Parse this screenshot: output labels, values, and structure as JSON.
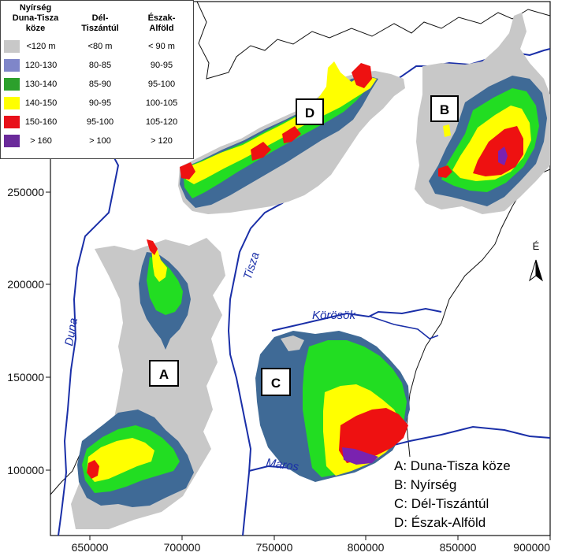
{
  "legend": {
    "columns": [
      {
        "line1": "Nyírség",
        "line2": "Duna-Tisza",
        "line3": "köze"
      },
      {
        "line1": "Dél-",
        "line2": "Tiszántúl",
        "line3": ""
      },
      {
        "line1": "Észak-",
        "line2": "Alföld",
        "line3": ""
      }
    ],
    "rows": [
      {
        "color": "#c8c8c8",
        "a": "<120 m",
        "b": "<80 m",
        "c": "< 90 m"
      },
      {
        "color": "#7f86c9",
        "a": "120-130",
        "b": "80-85",
        "c": "90-95"
      },
      {
        "color": "#2ca02c",
        "a": "130-140",
        "b": "85-90",
        "c": "95-100"
      },
      {
        "color": "#ffff00",
        "a": "140-150",
        "b": "90-95",
        "c": "100-105"
      },
      {
        "color": "#e8101a",
        "a": "150-160",
        "b": "95-100",
        "c": "105-120"
      },
      {
        "color": "#6a2a9a",
        "a": "> 160",
        "b": "> 100",
        "c": "> 120"
      }
    ]
  },
  "colors": {
    "gray": "#c8c8c8",
    "steel_blue": "#3f6a96",
    "green": "#22dd22",
    "yellow": "#ffff00",
    "red": "#ee1111",
    "purple": "#7a22b0",
    "river": "#1a2fa8",
    "border": "#111111"
  },
  "axes": {
    "x_ticks": [
      "650000",
      "700000",
      "750000",
      "800000",
      "850000",
      "900000"
    ],
    "y_ticks": [
      "250000",
      "200000",
      "150000",
      "100000"
    ]
  },
  "regions": {
    "A": {
      "box": "A",
      "key": "A: Duna-Tisza köze"
    },
    "B": {
      "box": "B",
      "key": "B: Nyírség"
    },
    "C": {
      "box": "C",
      "key": "C: Dél-Tiszántúl"
    },
    "D": {
      "box": "D",
      "key": "D: Észak-Alföld"
    }
  },
  "rivers": {
    "duna": "Duna",
    "tisza": "Tisza",
    "korosok": "Körösök",
    "maros": "Maros"
  },
  "north_arrow": {
    "label": "É",
    "icon": "north-arrow-icon"
  }
}
